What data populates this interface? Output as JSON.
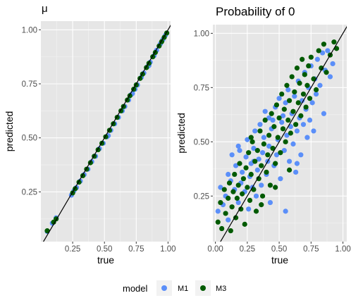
{
  "chart_data": [
    {
      "type": "scatter",
      "title": "μ",
      "xlabel": "true",
      "ylabel": "predicted",
      "xlim": [
        0.0,
        1.02
      ],
      "ylim": [
        0.02,
        1.04
      ],
      "x_ticks": [
        0.25,
        0.5,
        0.75,
        1.0
      ],
      "x_tick_labels": [
        "0.25",
        "0.50",
        "0.75",
        "1.00"
      ],
      "y_ticks": [
        0.25,
        0.5,
        0.75,
        1.0
      ],
      "y_tick_labels": [
        "0.25",
        "0.50",
        "0.75",
        "1.00"
      ],
      "reference_line": "y = x",
      "grid": true,
      "series": [
        {
          "name": "M1",
          "color": "#5b8ff9",
          "points": [
            [
              0.05,
              0.067
            ],
            [
              0.09,
              0.105
            ],
            [
              0.12,
              0.13
            ],
            [
              0.24,
              0.235
            ],
            [
              0.26,
              0.255
            ],
            [
              0.28,
              0.27
            ],
            [
              0.31,
              0.3
            ],
            [
              0.34,
              0.33
            ],
            [
              0.37,
              0.355
            ],
            [
              0.4,
              0.39
            ],
            [
              0.43,
              0.415
            ],
            [
              0.46,
              0.45
            ],
            [
              0.49,
              0.475
            ],
            [
              0.52,
              0.505
            ],
            [
              0.55,
              0.535
            ],
            [
              0.58,
              0.565
            ],
            [
              0.61,
              0.595
            ],
            [
              0.64,
              0.625
            ],
            [
              0.66,
              0.645
            ],
            [
              0.69,
              0.675
            ],
            [
              0.71,
              0.7
            ],
            [
              0.74,
              0.725
            ],
            [
              0.76,
              0.745
            ],
            [
              0.79,
              0.78
            ],
            [
              0.81,
              0.8
            ],
            [
              0.84,
              0.83
            ],
            [
              0.86,
              0.85
            ],
            [
              0.89,
              0.88
            ],
            [
              0.91,
              0.905
            ],
            [
              0.94,
              0.935
            ],
            [
              0.96,
              0.955
            ],
            [
              0.98,
              0.975
            ],
            [
              0.99,
              0.985
            ],
            [
              0.53,
              0.51
            ],
            [
              0.72,
              0.705
            ],
            [
              0.85,
              0.835
            ]
          ]
        },
        {
          "name": "M3",
          "color": "#005a00",
          "points": [
            [
              0.05,
              0.07
            ],
            [
              0.1,
              0.11
            ],
            [
              0.12,
              0.125
            ],
            [
              0.25,
              0.245
            ],
            [
              0.27,
              0.265
            ],
            [
              0.3,
              0.295
            ],
            [
              0.33,
              0.325
            ],
            [
              0.36,
              0.355
            ],
            [
              0.39,
              0.385
            ],
            [
              0.42,
              0.415
            ],
            [
              0.45,
              0.445
            ],
            [
              0.48,
              0.475
            ],
            [
              0.51,
              0.505
            ],
            [
              0.54,
              0.535
            ],
            [
              0.57,
              0.565
            ],
            [
              0.6,
              0.595
            ],
            [
              0.63,
              0.625
            ],
            [
              0.65,
              0.645
            ],
            [
              0.68,
              0.675
            ],
            [
              0.7,
              0.695
            ],
            [
              0.73,
              0.725
            ],
            [
              0.75,
              0.745
            ],
            [
              0.78,
              0.775
            ],
            [
              0.8,
              0.795
            ],
            [
              0.83,
              0.825
            ],
            [
              0.85,
              0.845
            ],
            [
              0.88,
              0.875
            ],
            [
              0.9,
              0.895
            ],
            [
              0.93,
              0.925
            ],
            [
              0.95,
              0.945
            ],
            [
              0.97,
              0.965
            ],
            [
              0.99,
              0.985
            ]
          ]
        }
      ]
    },
    {
      "type": "scatter",
      "title": "Probability of 0",
      "xlabel": "true",
      "ylabel": "predicted",
      "xlim": [
        -0.02,
        1.03
      ],
      "ylim": [
        0.04,
        1.04
      ],
      "x_ticks": [
        0.0,
        0.25,
        0.5,
        0.75,
        1.0
      ],
      "x_tick_labels": [
        "0.00",
        "0.25",
        "0.50",
        "0.75",
        "1.00"
      ],
      "y_ticks": [
        0.25,
        0.5,
        0.75,
        1.0
      ],
      "y_tick_labels": [
        "0.25",
        "0.50",
        "0.75",
        "1.00"
      ],
      "reference_line": "y = x",
      "grid": true,
      "series": [
        {
          "name": "M1",
          "color": "#5b8ff9",
          "points": [
            [
              0.02,
              0.18
            ],
            [
              0.04,
              0.29
            ],
            [
              0.06,
              0.21
            ],
            [
              0.08,
              0.25
            ],
            [
              0.1,
              0.35
            ],
            [
              0.1,
              0.14
            ],
            [
              0.12,
              0.32
            ],
            [
              0.13,
              0.44
            ],
            [
              0.15,
              0.28
            ],
            [
              0.16,
              0.39
            ],
            [
              0.18,
              0.22
            ],
            [
              0.19,
              0.46
            ],
            [
              0.2,
              0.31
            ],
            [
              0.21,
              0.36
            ],
            [
              0.23,
              0.27
            ],
            [
              0.24,
              0.43
            ],
            [
              0.25,
              0.51
            ],
            [
              0.26,
              0.19
            ],
            [
              0.27,
              0.34
            ],
            [
              0.28,
              0.4
            ],
            [
              0.29,
              0.29
            ],
            [
              0.3,
              0.47
            ],
            [
              0.31,
              0.55
            ],
            [
              0.32,
              0.25
            ],
            [
              0.33,
              0.37
            ],
            [
              0.34,
              0.42
            ],
            [
              0.35,
              0.58
            ],
            [
              0.36,
              0.3
            ],
            [
              0.37,
              0.45
            ],
            [
              0.38,
              0.52
            ],
            [
              0.39,
              0.64
            ],
            [
              0.4,
              0.35
            ],
            [
              0.41,
              0.41
            ],
            [
              0.42,
              0.48
            ],
            [
              0.43,
              0.22
            ],
            [
              0.44,
              0.56
            ],
            [
              0.45,
              0.6
            ],
            [
              0.46,
              0.39
            ],
            [
              0.47,
              0.66
            ],
            [
              0.48,
              0.44
            ],
            [
              0.49,
              0.51
            ],
            [
              0.5,
              0.7
            ],
            [
              0.51,
              0.33
            ],
            [
              0.52,
              0.59
            ],
            [
              0.53,
              0.62
            ],
            [
              0.54,
              0.46
            ],
            [
              0.55,
              0.68
            ],
            [
              0.56,
              0.53
            ],
            [
              0.57,
              0.74
            ],
            [
              0.58,
              0.41
            ],
            [
              0.59,
              0.57
            ],
            [
              0.6,
              0.63
            ],
            [
              0.61,
              0.49
            ],
            [
              0.62,
              0.71
            ],
            [
              0.63,
              0.36
            ],
            [
              0.64,
              0.55
            ],
            [
              0.65,
              0.78
            ],
            [
              0.66,
              0.61
            ],
            [
              0.67,
              0.44
            ],
            [
              0.68,
              0.69
            ],
            [
              0.69,
              0.58
            ],
            [
              0.7,
              0.82
            ],
            [
              0.71,
              0.65
            ],
            [
              0.72,
              0.52
            ],
            [
              0.73,
              0.75
            ],
            [
              0.74,
              0.6
            ],
            [
              0.75,
              0.85
            ],
            [
              0.76,
              0.68
            ],
            [
              0.77,
              0.55
            ],
            [
              0.78,
              0.79
            ],
            [
              0.79,
              0.72
            ],
            [
              0.8,
              0.88
            ],
            [
              0.82,
              0.76
            ],
            [
              0.84,
              0.91
            ],
            [
              0.85,
              0.63
            ],
            [
              0.86,
              0.83
            ],
            [
              0.88,
              0.92
            ],
            [
              0.9,
              0.8
            ],
            [
              0.92,
              0.86
            ],
            [
              0.55,
              0.18
            ],
            [
              0.3,
              0.41
            ],
            [
              0.18,
              0.48
            ],
            [
              0.42,
              0.61
            ],
            [
              0.64,
              0.4
            ]
          ]
        },
        {
          "name": "M3",
          "color": "#005a00",
          "points": [
            [
              0.02,
              0.13
            ],
            [
              0.04,
              0.22
            ],
            [
              0.05,
              0.1
            ],
            [
              0.07,
              0.28
            ],
            [
              0.08,
              0.17
            ],
            [
              0.1,
              0.24
            ],
            [
              0.11,
              0.31
            ],
            [
              0.12,
              0.09
            ],
            [
              0.13,
              0.2
            ],
            [
              0.14,
              0.27
            ],
            [
              0.15,
              0.35
            ],
            [
              0.16,
              0.15
            ],
            [
              0.17,
              0.24
            ],
            [
              0.18,
              0.3
            ],
            [
              0.19,
              0.4
            ],
            [
              0.2,
              0.19
            ],
            [
              0.21,
              0.26
            ],
            [
              0.22,
              0.33
            ],
            [
              0.23,
              0.12
            ],
            [
              0.24,
              0.38
            ],
            [
              0.25,
              0.29
            ],
            [
              0.26,
              0.45
            ],
            [
              0.27,
              0.23
            ],
            [
              0.28,
              0.35
            ],
            [
              0.29,
              0.5
            ],
            [
              0.3,
              0.28
            ],
            [
              0.31,
              0.41
            ],
            [
              0.32,
              0.18
            ],
            [
              0.33,
              0.46
            ],
            [
              0.34,
              0.33
            ],
            [
              0.35,
              0.55
            ],
            [
              0.36,
              0.39
            ],
            [
              0.37,
              0.25
            ],
            [
              0.38,
              0.49
            ],
            [
              0.39,
              0.6
            ],
            [
              0.4,
              0.36
            ],
            [
              0.41,
              0.44
            ],
            [
              0.42,
              0.53
            ],
            [
              0.43,
              0.3
            ],
            [
              0.44,
              0.63
            ],
            [
              0.45,
              0.47
            ],
            [
              0.46,
              0.57
            ],
            [
              0.47,
              0.4
            ],
            [
              0.48,
              0.67
            ],
            [
              0.49,
              0.52
            ],
            [
              0.5,
              0.61
            ],
            [
              0.51,
              0.45
            ],
            [
              0.52,
              0.72
            ],
            [
              0.53,
              0.56
            ],
            [
              0.54,
              0.65
            ],
            [
              0.55,
              0.5
            ],
            [
              0.56,
              0.76
            ],
            [
              0.57,
              0.6
            ],
            [
              0.58,
              0.69
            ],
            [
              0.59,
              0.54
            ],
            [
              0.6,
              0.8
            ],
            [
              0.61,
              0.64
            ],
            [
              0.62,
              0.73
            ],
            [
              0.63,
              0.58
            ],
            [
              0.64,
              0.84
            ],
            [
              0.65,
              0.68
            ],
            [
              0.66,
              0.77
            ],
            [
              0.67,
              0.62
            ],
            [
              0.68,
              0.88
            ],
            [
              0.69,
              0.72
            ],
            [
              0.7,
              0.81
            ],
            [
              0.71,
              0.66
            ],
            [
              0.72,
              0.76
            ],
            [
              0.73,
              0.85
            ],
            [
              0.74,
              0.7
            ],
            [
              0.75,
              0.89
            ],
            [
              0.77,
              0.79
            ],
            [
              0.79,
              0.74
            ],
            [
              0.81,
              0.92
            ],
            [
              0.83,
              0.84
            ],
            [
              0.85,
              0.95
            ],
            [
              0.87,
              0.82
            ],
            [
              0.9,
              0.9
            ],
            [
              0.93,
              0.96
            ],
            [
              0.95,
              0.93
            ],
            [
              0.36,
              0.21
            ],
            [
              0.47,
              0.29
            ],
            [
              0.58,
              0.37
            ],
            [
              0.28,
              0.52
            ]
          ]
        }
      ]
    }
  ],
  "legend": {
    "title": "model",
    "items": [
      {
        "label": "M1",
        "color": "#5b8ff9"
      },
      {
        "label": "M3",
        "color": "#005a00"
      }
    ]
  }
}
